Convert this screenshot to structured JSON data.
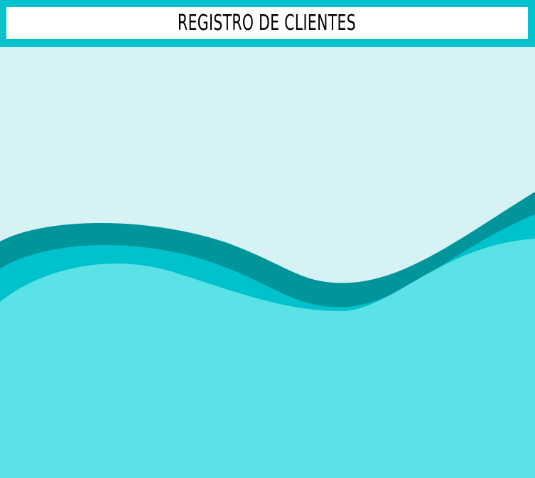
{
  "header": {
    "title": "REGISTRO DE CLIENTES"
  },
  "colors": {
    "background": "#d6f2f5",
    "header_bar": "#00c2cd",
    "title_box": "#ffffff",
    "wave_dark": "#00959b",
    "wave_mid": "#00c2cd",
    "wave_light": "#5ae2e6"
  }
}
